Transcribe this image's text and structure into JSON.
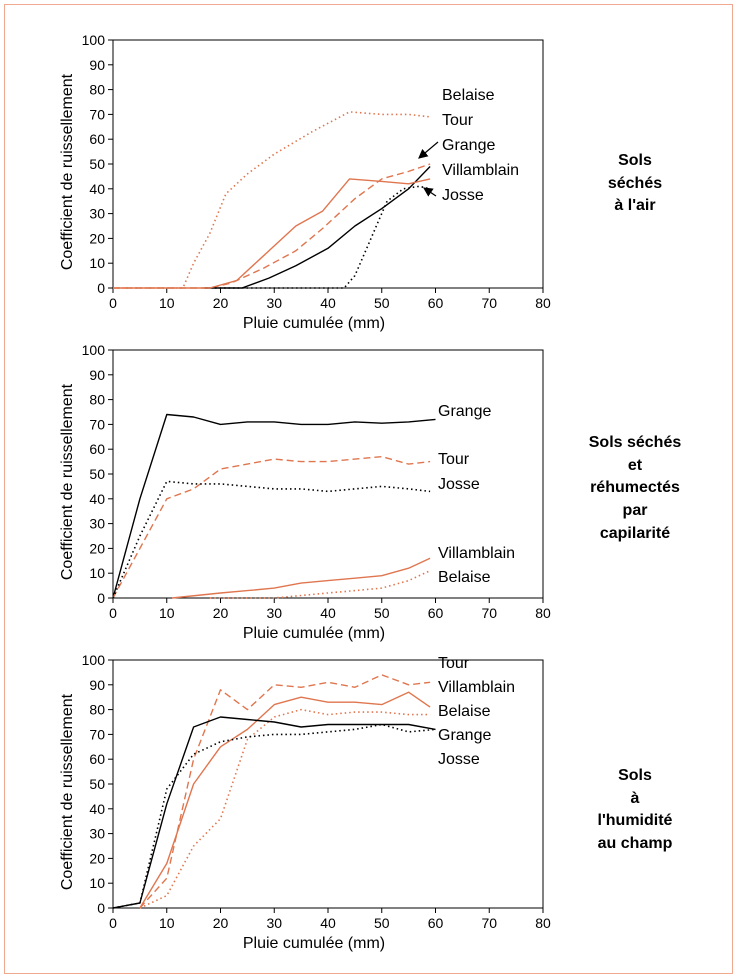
{
  "colors": {
    "black": "#000000",
    "orange": "#e0764f",
    "frame": "#f0a890"
  },
  "chart_data": [
    {
      "type": "line",
      "condition": "Sols séchés à l'air",
      "condition_lines": [
        "Sols",
        "séchés",
        "à l'air"
      ],
      "xlabel": "Pluie cumulée (mm)",
      "ylabel": "Coefficient de ruissellement",
      "xlim": [
        0,
        80
      ],
      "ylim": [
        0,
        100
      ],
      "xticks": [
        0,
        10,
        20,
        30,
        40,
        50,
        60,
        70,
        80
      ],
      "yticks": [
        0,
        10,
        20,
        30,
        40,
        50,
        60,
        70,
        80,
        90,
        100
      ],
      "legend": [
        "Belaise",
        "Tour",
        "Grange",
        "Villamblain",
        "Josse"
      ],
      "series": [
        {
          "name": "Belaise",
          "color": "orange",
          "dash": "dotted",
          "points": [
            [
              0,
              0
            ],
            [
              13,
              0
            ],
            [
              15,
              10
            ],
            [
              18,
              22
            ],
            [
              21,
              38
            ],
            [
              25,
              46
            ],
            [
              30,
              54
            ],
            [
              37,
              63
            ],
            [
              44,
              71
            ],
            [
              50,
              70
            ],
            [
              55,
              70
            ],
            [
              59,
              69
            ]
          ]
        },
        {
          "name": "Tour",
          "color": "orange",
          "dash": "dashed",
          "points": [
            [
              0,
              0
            ],
            [
              18,
              0
            ],
            [
              22,
              2
            ],
            [
              28,
              8
            ],
            [
              34,
              15
            ],
            [
              39,
              24
            ],
            [
              45,
              36
            ],
            [
              50,
              44
            ],
            [
              55,
              47
            ],
            [
              59,
              50
            ]
          ]
        },
        {
          "name": "Grange",
          "color": "black",
          "dash": "solid",
          "points": [
            [
              17,
              0
            ],
            [
              24,
              0
            ],
            [
              29,
              4
            ],
            [
              34,
              9
            ],
            [
              40,
              16
            ],
            [
              45,
              25
            ],
            [
              50,
              32
            ],
            [
              55,
              40
            ],
            [
              59,
              49
            ]
          ]
        },
        {
          "name": "Villamblain",
          "color": "orange",
          "dash": "solid",
          "points": [
            [
              0,
              0
            ],
            [
              18,
              0
            ],
            [
              23,
              3
            ],
            [
              28,
              13
            ],
            [
              34,
              25
            ],
            [
              39,
              31
            ],
            [
              44,
              44
            ],
            [
              50,
              43
            ],
            [
              55,
              42
            ],
            [
              59,
              44
            ]
          ]
        },
        {
          "name": "Josse",
          "color": "black",
          "dash": "dotted",
          "points": [
            [
              19,
              0
            ],
            [
              43,
              0
            ],
            [
              45,
              5
            ],
            [
              48,
              20
            ],
            [
              51,
              35
            ],
            [
              54,
              40
            ],
            [
              57,
              41
            ],
            [
              59,
              40
            ]
          ]
        }
      ]
    },
    {
      "type": "line",
      "condition": "Sols séchés et réhumectés par capilarité",
      "condition_lines": [
        "Sols séchés",
        "et",
        "réhumectés",
        "par",
        "capilarité"
      ],
      "xlabel": "Pluie cumulée (mm)",
      "ylabel": "Coefficient de ruissellement",
      "xlim": [
        0,
        80
      ],
      "ylim": [
        0,
        100
      ],
      "xticks": [
        0,
        10,
        20,
        30,
        40,
        50,
        60,
        70,
        80
      ],
      "yticks": [
        0,
        10,
        20,
        30,
        40,
        50,
        60,
        70,
        80,
        90,
        100
      ],
      "legend": [
        "Grange",
        "Tour",
        "Josse",
        "Villamblain",
        "Belaise"
      ],
      "series": [
        {
          "name": "Grange",
          "color": "black",
          "dash": "solid",
          "points": [
            [
              0,
              0
            ],
            [
              5,
              40
            ],
            [
              10,
              74
            ],
            [
              15,
              73
            ],
            [
              20,
              70
            ],
            [
              25,
              71
            ],
            [
              30,
              71
            ],
            [
              35,
              70
            ],
            [
              40,
              70
            ],
            [
              45,
              71
            ],
            [
              50,
              70.5
            ],
            [
              55,
              71
            ],
            [
              60,
              72
            ]
          ]
        },
        {
          "name": "Tour",
          "color": "orange",
          "dash": "dashed",
          "points": [
            [
              0,
              0
            ],
            [
              5,
              20
            ],
            [
              10,
              40
            ],
            [
              15,
              44
            ],
            [
              20,
              52
            ],
            [
              25,
              54
            ],
            [
              30,
              56
            ],
            [
              35,
              55
            ],
            [
              40,
              55
            ],
            [
              45,
              56
            ],
            [
              50,
              57
            ],
            [
              55,
              54
            ],
            [
              59,
              55
            ]
          ]
        },
        {
          "name": "Josse",
          "color": "black",
          "dash": "dotted",
          "points": [
            [
              0,
              0
            ],
            [
              5,
              25
            ],
            [
              10,
              47
            ],
            [
              15,
              46
            ],
            [
              20,
              46
            ],
            [
              25,
              45
            ],
            [
              30,
              44
            ],
            [
              35,
              44
            ],
            [
              40,
              43
            ],
            [
              45,
              44
            ],
            [
              50,
              45
            ],
            [
              55,
              44
            ],
            [
              59,
              43
            ]
          ]
        },
        {
          "name": "Villamblain",
          "color": "orange",
          "dash": "solid",
          "points": [
            [
              11,
              0
            ],
            [
              20,
              2
            ],
            [
              25,
              3
            ],
            [
              30,
              4
            ],
            [
              35,
              6
            ],
            [
              40,
              7
            ],
            [
              45,
              8
            ],
            [
              50,
              9
            ],
            [
              55,
              12
            ],
            [
              59,
              16
            ]
          ]
        },
        {
          "name": "Belaise",
          "color": "orange",
          "dash": "dotted",
          "points": [
            [
              18,
              0
            ],
            [
              25,
              0
            ],
            [
              30,
              0
            ],
            [
              35,
              1
            ],
            [
              40,
              2
            ],
            [
              45,
              3
            ],
            [
              50,
              4
            ],
            [
              55,
              7
            ],
            [
              59,
              11
            ]
          ]
        }
      ]
    },
    {
      "type": "line",
      "condition": "Sols à l'humidité au champ",
      "condition_lines": [
        "Sols",
        "à",
        "l'humidité",
        "au champ"
      ],
      "xlabel": "Pluie cumulée (mm)",
      "ylabel": "Coefficient de ruissellement",
      "xlim": [
        0,
        80
      ],
      "ylim": [
        0,
        100
      ],
      "xticks": [
        0,
        10,
        20,
        30,
        40,
        50,
        60,
        70,
        80
      ],
      "yticks": [
        0,
        10,
        20,
        30,
        40,
        50,
        60,
        70,
        80,
        90,
        100
      ],
      "legend": [
        "Tour",
        "Villamblain",
        "Belaise",
        "Grange",
        "Josse"
      ],
      "series": [
        {
          "name": "Tour",
          "color": "orange",
          "dash": "dashed",
          "points": [
            [
              5,
              0
            ],
            [
              10,
              12
            ],
            [
              15,
              60
            ],
            [
              20,
              88
            ],
            [
              25,
              80
            ],
            [
              30,
              90
            ],
            [
              35,
              89
            ],
            [
              40,
              91
            ],
            [
              45,
              89
            ],
            [
              50,
              94
            ],
            [
              55,
              90
            ],
            [
              59,
              91
            ]
          ]
        },
        {
          "name": "Villamblain",
          "color": "orange",
          "dash": "solid",
          "points": [
            [
              5,
              0
            ],
            [
              10,
              18
            ],
            [
              15,
              50
            ],
            [
              20,
              65
            ],
            [
              25,
              72
            ],
            [
              30,
              82
            ],
            [
              35,
              85
            ],
            [
              40,
              83
            ],
            [
              45,
              83
            ],
            [
              50,
              82
            ],
            [
              55,
              87
            ],
            [
              59,
              81
            ]
          ]
        },
        {
          "name": "Belaise",
          "color": "orange",
          "dash": "dotted",
          "points": [
            [
              5,
              0
            ],
            [
              10,
              5
            ],
            [
              15,
              25
            ],
            [
              20,
              36
            ],
            [
              25,
              68
            ],
            [
              30,
              77
            ],
            [
              35,
              80
            ],
            [
              40,
              78
            ],
            [
              45,
              79
            ],
            [
              50,
              79
            ],
            [
              55,
              78
            ],
            [
              59,
              78
            ]
          ]
        },
        {
          "name": "Grange",
          "color": "black",
          "dash": "solid",
          "points": [
            [
              0,
              0
            ],
            [
              5,
              2
            ],
            [
              10,
              42
            ],
            [
              15,
              73
            ],
            [
              20,
              77
            ],
            [
              25,
              76
            ],
            [
              30,
              75
            ],
            [
              35,
              73
            ],
            [
              40,
              74
            ],
            [
              45,
              74
            ],
            [
              50,
              74
            ],
            [
              55,
              74
            ],
            [
              60,
              72
            ]
          ]
        },
        {
          "name": "Josse",
          "color": "black",
          "dash": "dotted",
          "points": [
            [
              0,
              0
            ],
            [
              5,
              2
            ],
            [
              10,
              48
            ],
            [
              15,
              62
            ],
            [
              20,
              67
            ],
            [
              25,
              69
            ],
            [
              30,
              70
            ],
            [
              35,
              70
            ],
            [
              40,
              71
            ],
            [
              45,
              72
            ],
            [
              50,
              74
            ],
            [
              55,
              71
            ],
            [
              60,
              72
            ]
          ]
        }
      ]
    }
  ]
}
